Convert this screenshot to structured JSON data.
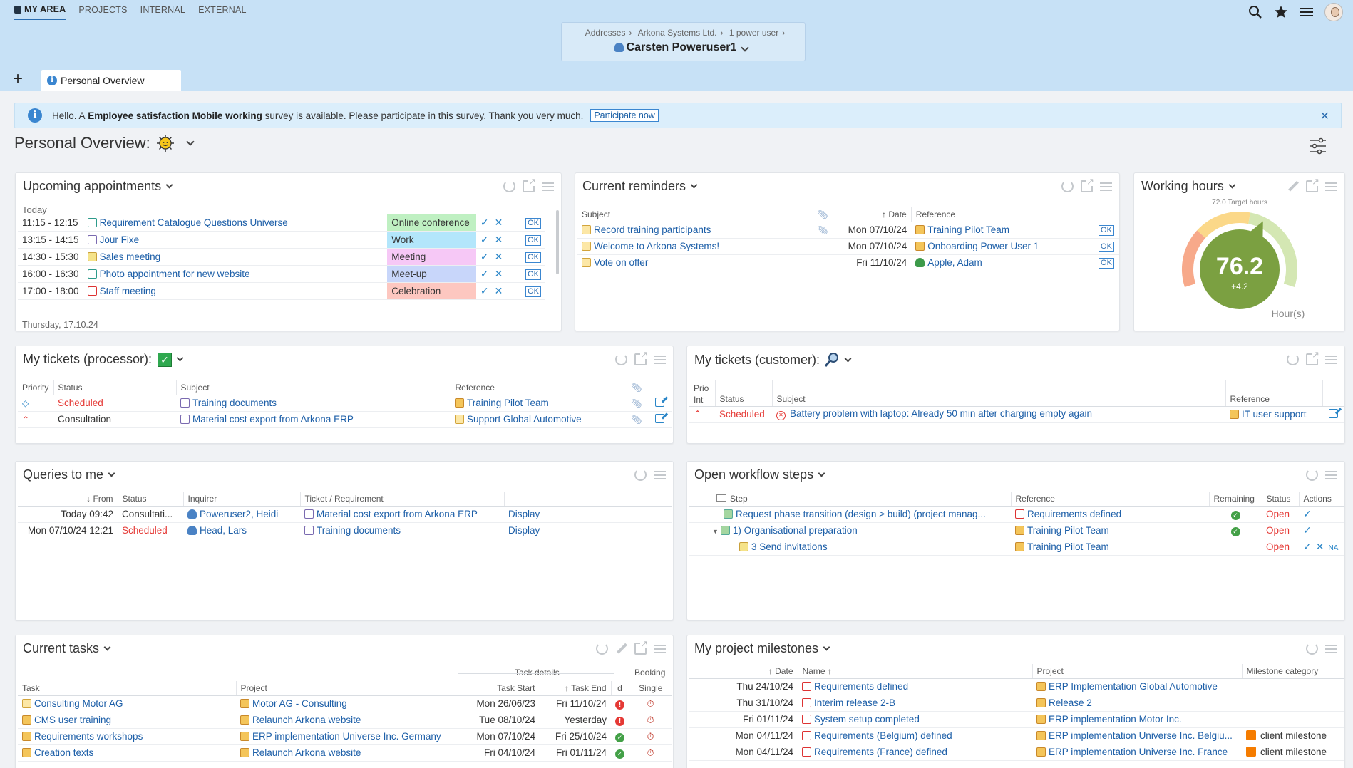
{
  "nav": {
    "items": [
      "MY AREA",
      "PROJECTS",
      "INTERNAL",
      "EXTERNAL"
    ]
  },
  "breadcrumb": {
    "items": [
      "Addresses",
      "Arkona Systems Ltd.",
      "1 power user"
    ],
    "user": "Carsten Poweruser1"
  },
  "tabs": {
    "add": "+",
    "items": [
      "Personal Overview"
    ]
  },
  "banner": {
    "prefix": "Hello. A",
    "survey": "Employee satisfaction Mobile working",
    "suffix": "survey is available. Please participate in this survey. Thank you very much.",
    "button": "Participate now",
    "close": "✕"
  },
  "page": {
    "title": "Personal Overview:"
  },
  "appointments": {
    "title": "Upcoming appointments",
    "group": "Today",
    "next_group": "Thursday, 17.10.24",
    "ok": "OK",
    "rows": [
      {
        "time": "11:15 - 12:15",
        "subject": "Requirement Catalogue Questions Universe",
        "category": "Online conference",
        "color": "#bff0c2"
      },
      {
        "time": "13:15 - 14:15",
        "subject": "Jour Fixe",
        "category": "Work",
        "color": "#b3e6fb"
      },
      {
        "time": "14:30 - 15:30",
        "subject": "Sales meeting",
        "category": "Meeting",
        "color": "#f6c8f6"
      },
      {
        "time": "16:00 - 16:30",
        "subject": "Photo appointment for new website",
        "category": "Meet-up",
        "color": "#c8d6fa"
      },
      {
        "time": "17:00 - 18:00",
        "subject": "Staff meeting",
        "category": "Celebration",
        "color": "#fdc7c0"
      }
    ]
  },
  "reminders": {
    "title": "Current reminders",
    "headers": [
      "Subject",
      "Date",
      "Reference"
    ],
    "ok": "OK",
    "rows": [
      {
        "subject": "Record training participants",
        "date": "Mon 07/10/24",
        "reference": "Training Pilot Team",
        "clip": true
      },
      {
        "subject": "Welcome to Arkona Systems!",
        "date": "Mon 07/10/24",
        "reference": "Onboarding Power User 1",
        "clip": false
      },
      {
        "subject": "Vote on offer",
        "date": "Fri 11/10/24",
        "reference": "Apple, Adam",
        "clip": false
      }
    ]
  },
  "working_hours": {
    "title": "Working hours",
    "target": "72.0 Target hours",
    "value": "76.2",
    "delta": "+4.2",
    "unit": "Hour(s)",
    "fraction": 0.62
  },
  "tickets_processor": {
    "title": "My tickets (processor):",
    "headers": [
      "Priority",
      "Status",
      "Subject",
      "Reference"
    ],
    "rows": [
      {
        "status": "Scheduled",
        "subject": "Training documents",
        "reference": "Training Pilot Team"
      },
      {
        "status": "Consultation",
        "subject": "Material cost export from Arkona ERP",
        "reference": "Support Global Automotive"
      }
    ]
  },
  "tickets_customer": {
    "title": "My tickets (customer):",
    "headers": [
      "Prio Int",
      "Status",
      "Subject",
      "Reference"
    ],
    "rows": [
      {
        "status": "Scheduled",
        "subject": "Battery problem with laptop: Already 50 min after charging empty again",
        "reference": "IT user support"
      }
    ]
  },
  "queries": {
    "title": "Queries to me",
    "headers": [
      "From",
      "Status",
      "Inquirer",
      "Ticket / Requirement"
    ],
    "rows": [
      {
        "from": "Today 09:42",
        "status": "Consultati...",
        "inquirer": "Poweruser2, Heidi",
        "ticket": "Material cost export from Arkona ERP",
        "action": "Display"
      },
      {
        "from": "Mon 07/10/24 12:21",
        "status": "Scheduled",
        "inquirer": "Head, Lars",
        "ticket": "Training documents",
        "action": "Display"
      }
    ]
  },
  "workflow": {
    "title": "Open workflow steps",
    "headers": [
      "Step",
      "Reference",
      "Remaining",
      "Status",
      "Actions"
    ],
    "rows": [
      {
        "step": "Request phase transition (design > build) (project manag...",
        "reference": "Requirements defined",
        "status": "Open"
      },
      {
        "step": "1) Organisational preparation",
        "reference": "Training Pilot Team",
        "status": "Open"
      },
      {
        "step": "3 Send invitations",
        "reference": "Training Pilot Team",
        "status": "Open",
        "na": "NA"
      }
    ]
  },
  "tasks": {
    "title": "Current tasks",
    "group1": "Task details",
    "group2": "Booking",
    "headers": [
      "Task",
      "Project",
      "Task Start",
      "Task End",
      "d",
      "Single"
    ],
    "rows": [
      {
        "task": "Consulting Motor AG",
        "project": "Motor AG - Consulting",
        "start": "Mon 26/06/23",
        "end": "Fri 11/10/24",
        "state": "red"
      },
      {
        "task": "CMS user training",
        "project": "Relaunch Arkona website",
        "start": "Tue 08/10/24",
        "end": "Yesterday",
        "state": "red"
      },
      {
        "task": "Requirements workshops",
        "project": "ERP implementation Universe Inc. Germany",
        "start": "Mon 07/10/24",
        "end": "Fri 25/10/24",
        "state": "green"
      },
      {
        "task": "Creation texts",
        "project": "Relaunch Arkona website",
        "start": "Fri 04/10/24",
        "end": "Fri 01/11/24",
        "state": "green"
      }
    ]
  },
  "milestones": {
    "title": "My project milestones",
    "headers": [
      "Date",
      "Name",
      "Project",
      "Milestone category"
    ],
    "rows": [
      {
        "date": "Thu 24/10/24",
        "name": "Requirements defined",
        "project": "ERP Implementation Global Automotive",
        "category": ""
      },
      {
        "date": "Thu 31/10/24",
        "name": "Interim release 2-B",
        "project": "Release 2",
        "category": ""
      },
      {
        "date": "Fri 01/11/24",
        "name": "System setup completed",
        "project": "ERP implementation Motor Inc.",
        "category": ""
      },
      {
        "date": "Mon 04/11/24",
        "name": "Requirements (Belgium) defined",
        "project": "ERP implementation Universe Inc. Belgiu...",
        "category": "client milestone"
      },
      {
        "date": "Mon 04/11/24",
        "name": "Requirements (France) defined",
        "project": "ERP implementation Universe Inc. France",
        "category": "client milestone"
      }
    ]
  }
}
